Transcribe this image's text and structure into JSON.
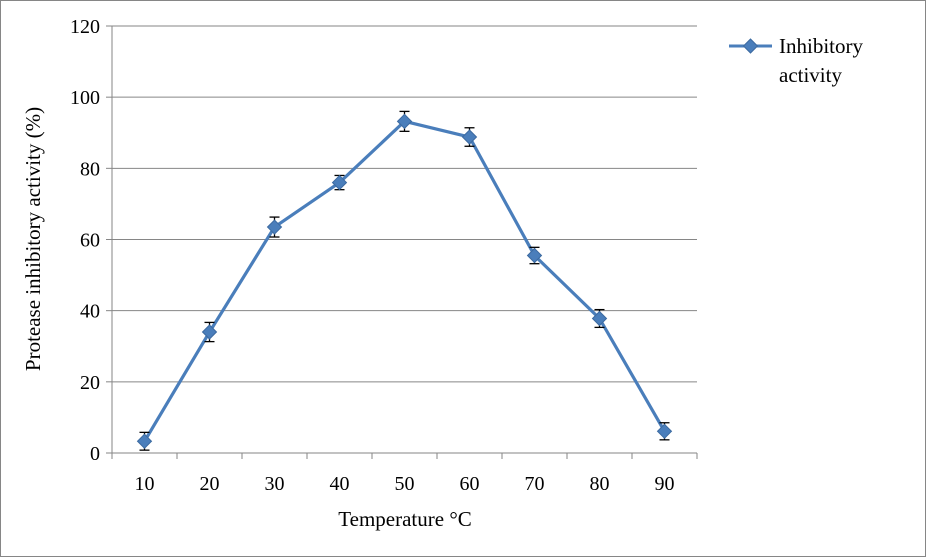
{
  "chart_data": {
    "type": "line",
    "xlabel": "Temperature °C",
    "ylabel": "Protease inhibitory activity (%)",
    "categories": [
      "10",
      "20",
      "30",
      "40",
      "50",
      "60",
      "70",
      "80",
      "90"
    ],
    "ylim": [
      0,
      120
    ],
    "yticks": [
      0,
      20,
      40,
      60,
      80,
      100,
      120
    ],
    "grid": true,
    "legend_position": "top-right",
    "legend_lines": [
      "Inhibitory",
      "activity"
    ],
    "series": [
      {
        "name": "Inhibitory activity",
        "color": "#4a7ebb",
        "values": [
          3.3,
          34,
          63.5,
          76,
          93.2,
          88.8,
          55.5,
          37.8,
          6.1
        ],
        "errors": [
          2.5,
          2.7,
          2.8,
          2.0,
          2.8,
          2.6,
          2.3,
          2.5,
          2.4
        ]
      }
    ]
  }
}
